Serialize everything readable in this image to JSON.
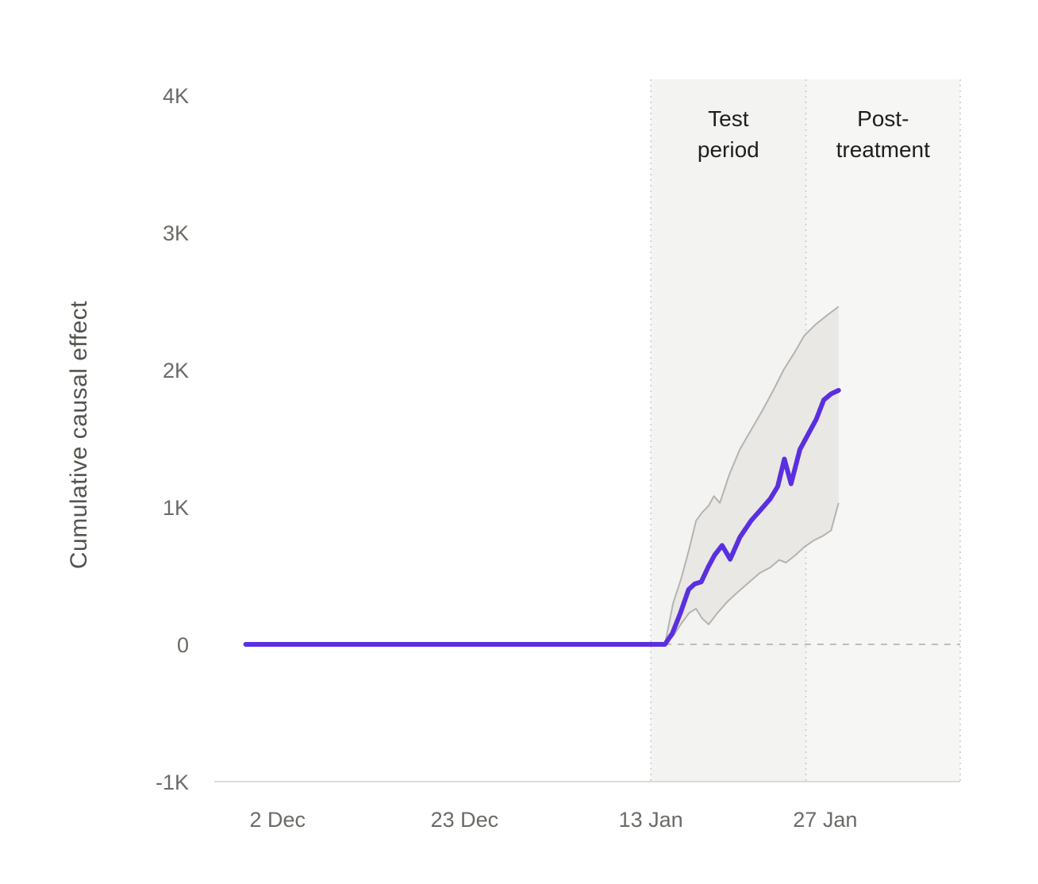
{
  "page": {
    "background": "#ffffff"
  },
  "chart_data": {
    "type": "line",
    "title": "",
    "ylabel": "Cumulative causal effect",
    "xlabel": "",
    "y_axis": {
      "range": [
        -1000,
        4120
      ],
      "ticks": [
        {
          "label": "-1K",
          "value": -1000
        },
        {
          "label": "0",
          "value": 0
        },
        {
          "label": "1K",
          "value": 1000
        },
        {
          "label": "2K",
          "value": 2000
        },
        {
          "label": "3K",
          "value": 3000
        },
        {
          "label": "4K",
          "value": 4000
        }
      ]
    },
    "x_axis": {
      "ticks": [
        {
          "label": "2 Dec",
          "pos": 0.08
        },
        {
          "label": "23 Dec",
          "pos": 0.332
        },
        {
          "label": "13 Jan",
          "pos": 0.583
        },
        {
          "label": "27 Jan",
          "pos": 0.818
        }
      ]
    },
    "regions": [
      {
        "id": "test-period",
        "label": "Test period",
        "start": 0.583,
        "end": 0.792,
        "fill": "#f3f3f1"
      },
      {
        "id": "post-treatment",
        "label": "Post-treatment",
        "start": 0.792,
        "end": 1.0,
        "fill": "#f6f6f4"
      }
    ],
    "zero_line": {
      "value": 0,
      "start": 0.602,
      "end": 1.0
    },
    "series": [
      {
        "name": "Cumulative causal effect",
        "color": "#5a2fe0",
        "points": [
          [
            0.037,
            0
          ],
          [
            0.602,
            0
          ],
          [
            0.612,
            80
          ],
          [
            0.623,
            230
          ],
          [
            0.634,
            400
          ],
          [
            0.642,
            440
          ],
          [
            0.651,
            455
          ],
          [
            0.66,
            560
          ],
          [
            0.669,
            650
          ],
          [
            0.679,
            720
          ],
          [
            0.69,
            620
          ],
          [
            0.703,
            780
          ],
          [
            0.718,
            900
          ],
          [
            0.731,
            980
          ],
          [
            0.744,
            1060
          ],
          [
            0.754,
            1150
          ],
          [
            0.763,
            1350
          ],
          [
            0.772,
            1170
          ],
          [
            0.784,
            1420
          ],
          [
            0.795,
            1530
          ],
          [
            0.806,
            1640
          ],
          [
            0.816,
            1780
          ],
          [
            0.826,
            1825
          ],
          [
            0.836,
            1850
          ]
        ]
      }
    ],
    "band": {
      "name": "Confidence interval",
      "fill": "#e8e7e3",
      "stroke": "#b4b3af",
      "upper": [
        [
          0.602,
          0
        ],
        [
          0.613,
          300
        ],
        [
          0.624,
          480
        ],
        [
          0.635,
          700
        ],
        [
          0.644,
          900
        ],
        [
          0.652,
          960
        ],
        [
          0.661,
          1010
        ],
        [
          0.668,
          1080
        ],
        [
          0.676,
          1030
        ],
        [
          0.689,
          1240
        ],
        [
          0.703,
          1420
        ],
        [
          0.718,
          1560
        ],
        [
          0.733,
          1700
        ],
        [
          0.748,
          1850
        ],
        [
          0.762,
          2000
        ],
        [
          0.776,
          2120
        ],
        [
          0.79,
          2250
        ],
        [
          0.805,
          2330
        ],
        [
          0.82,
          2395
        ],
        [
          0.836,
          2460
        ]
      ],
      "lower": [
        [
          0.602,
          0
        ],
        [
          0.613,
          60
        ],
        [
          0.624,
          150
        ],
        [
          0.635,
          230
        ],
        [
          0.644,
          260
        ],
        [
          0.652,
          190
        ],
        [
          0.661,
          145
        ],
        [
          0.673,
          230
        ],
        [
          0.686,
          310
        ],
        [
          0.7,
          380
        ],
        [
          0.715,
          450
        ],
        [
          0.73,
          520
        ],
        [
          0.744,
          560
        ],
        [
          0.756,
          615
        ],
        [
          0.765,
          595
        ],
        [
          0.778,
          650
        ],
        [
          0.79,
          710
        ],
        [
          0.802,
          755
        ],
        [
          0.815,
          790
        ],
        [
          0.826,
          830
        ],
        [
          0.836,
          1030
        ]
      ]
    },
    "colors": {
      "divider": "#c9c8c5",
      "axis": "#dcdbd8",
      "zero_line": "#bdbcb9",
      "tick_text": "#6b6a66",
      "region_label_text": "#1e1e1c",
      "y_title_text": "#53524d"
    }
  }
}
